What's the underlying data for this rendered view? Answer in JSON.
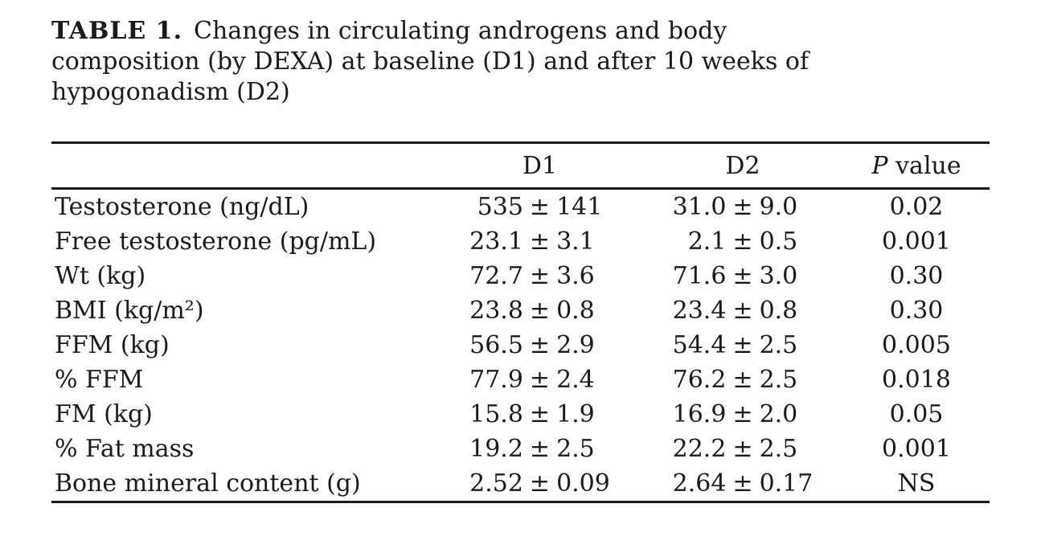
{
  "caption": {
    "label": "TABLE 1.",
    "line1": "Changes in circulating androgens and body",
    "line2": "composition (by DEXA) at baseline (D1) and after 10 weeks of",
    "line3": "hypogonadism (D2)"
  },
  "table": {
    "header": {
      "d1": "D1",
      "d2": "D2",
      "p_italic": "P",
      "p_rest": "value"
    },
    "plus_minus": "±",
    "rows": [
      {
        "label": "Testosterone (ng/dL)",
        "d1m": "535",
        "d1s": "141",
        "d2m": "31.0",
        "d2s": "9.0",
        "p": "0.02"
      },
      {
        "label": "Free testosterone (pg/mL)",
        "d1m": "23.1",
        "d1s": "3.1",
        "d2m": "2.1",
        "d2s": "0.5",
        "p": "0.001"
      },
      {
        "label": "Wt (kg)",
        "d1m": "72.7",
        "d1s": "3.6",
        "d2m": "71.6",
        "d2s": "3.0",
        "p": "0.30"
      },
      {
        "label": "BMI (kg/m²)",
        "d1m": "23.8",
        "d1s": "0.8",
        "d2m": "23.4",
        "d2s": "0.8",
        "p": "0.30"
      },
      {
        "label": "FFM (kg)",
        "d1m": "56.5",
        "d1s": "2.9",
        "d2m": "54.4",
        "d2s": "2.5",
        "p": "0.005"
      },
      {
        "label": "% FFM",
        "d1m": "77.9",
        "d1s": "2.4",
        "d2m": "76.2",
        "d2s": "2.5",
        "p": "0.018"
      },
      {
        "label": "FM (kg)",
        "d1m": "15.8",
        "d1s": "1.9",
        "d2m": "16.9",
        "d2s": "2.0",
        "p": "0.05"
      },
      {
        "label": "% Fat mass",
        "d1m": "19.2",
        "d1s": "2.5",
        "d2m": "22.2",
        "d2s": "2.5",
        "p": "0.001"
      },
      {
        "label": "Bone mineral content (g)",
        "d1m": "2.52",
        "d1s": "0.09",
        "d2m": "2.64",
        "d2s": "0.17",
        "p": "NS"
      }
    ]
  },
  "colors": {
    "text": "#1a1a1a",
    "rule": "#1a1a1a",
    "background": "#ffffff"
  }
}
